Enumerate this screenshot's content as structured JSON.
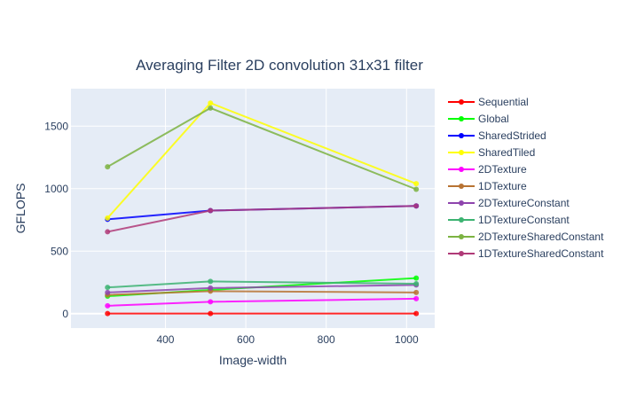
{
  "chart_data": {
    "type": "line",
    "title": "Averaging Filter 2D convolution 31x31 filter",
    "xlabel": "Image-width",
    "ylabel": "GFLOPS",
    "xlim": [
      165,
      1070
    ],
    "ylim": [
      -115,
      1800
    ],
    "x_ticks": [
      400,
      600,
      800,
      1000
    ],
    "y_ticks": [
      0,
      500,
      1000,
      1500
    ],
    "grid": true,
    "legend_position": "right",
    "plot_background": "#e5ecf6",
    "x": [
      256,
      512,
      1024
    ],
    "series": [
      {
        "name": "Sequential",
        "color": "#ff0000",
        "values": [
          1,
          1,
          1
        ]
      },
      {
        "name": "Global",
        "color": "#00ff00",
        "values": [
          140,
          190,
          285
        ]
      },
      {
        "name": "SharedStrided",
        "color": "#0000ff",
        "values": [
          755,
          825,
          862
        ]
      },
      {
        "name": "SharedTiled",
        "color": "#ffff00",
        "values": [
          765,
          1685,
          1040
        ]
      },
      {
        "name": "2DTexture",
        "color": "#ff00ff",
        "values": [
          63,
          95,
          120
        ]
      },
      {
        "name": "1DTexture",
        "color": "#b87333",
        "values": [
          150,
          180,
          170
        ]
      },
      {
        "name": "2DTextureConstant",
        "color": "#8e44ad",
        "values": [
          170,
          205,
          230
        ]
      },
      {
        "name": "1DTextureConstant",
        "color": "#3cb371",
        "values": [
          210,
          258,
          240
        ]
      },
      {
        "name": "2DTextureSharedConstant",
        "color": "#7cb342",
        "values": [
          1175,
          1645,
          995
        ]
      },
      {
        "name": "1DTextureSharedConstant",
        "color": "#b03a78",
        "values": [
          655,
          825,
          862
        ]
      }
    ]
  }
}
